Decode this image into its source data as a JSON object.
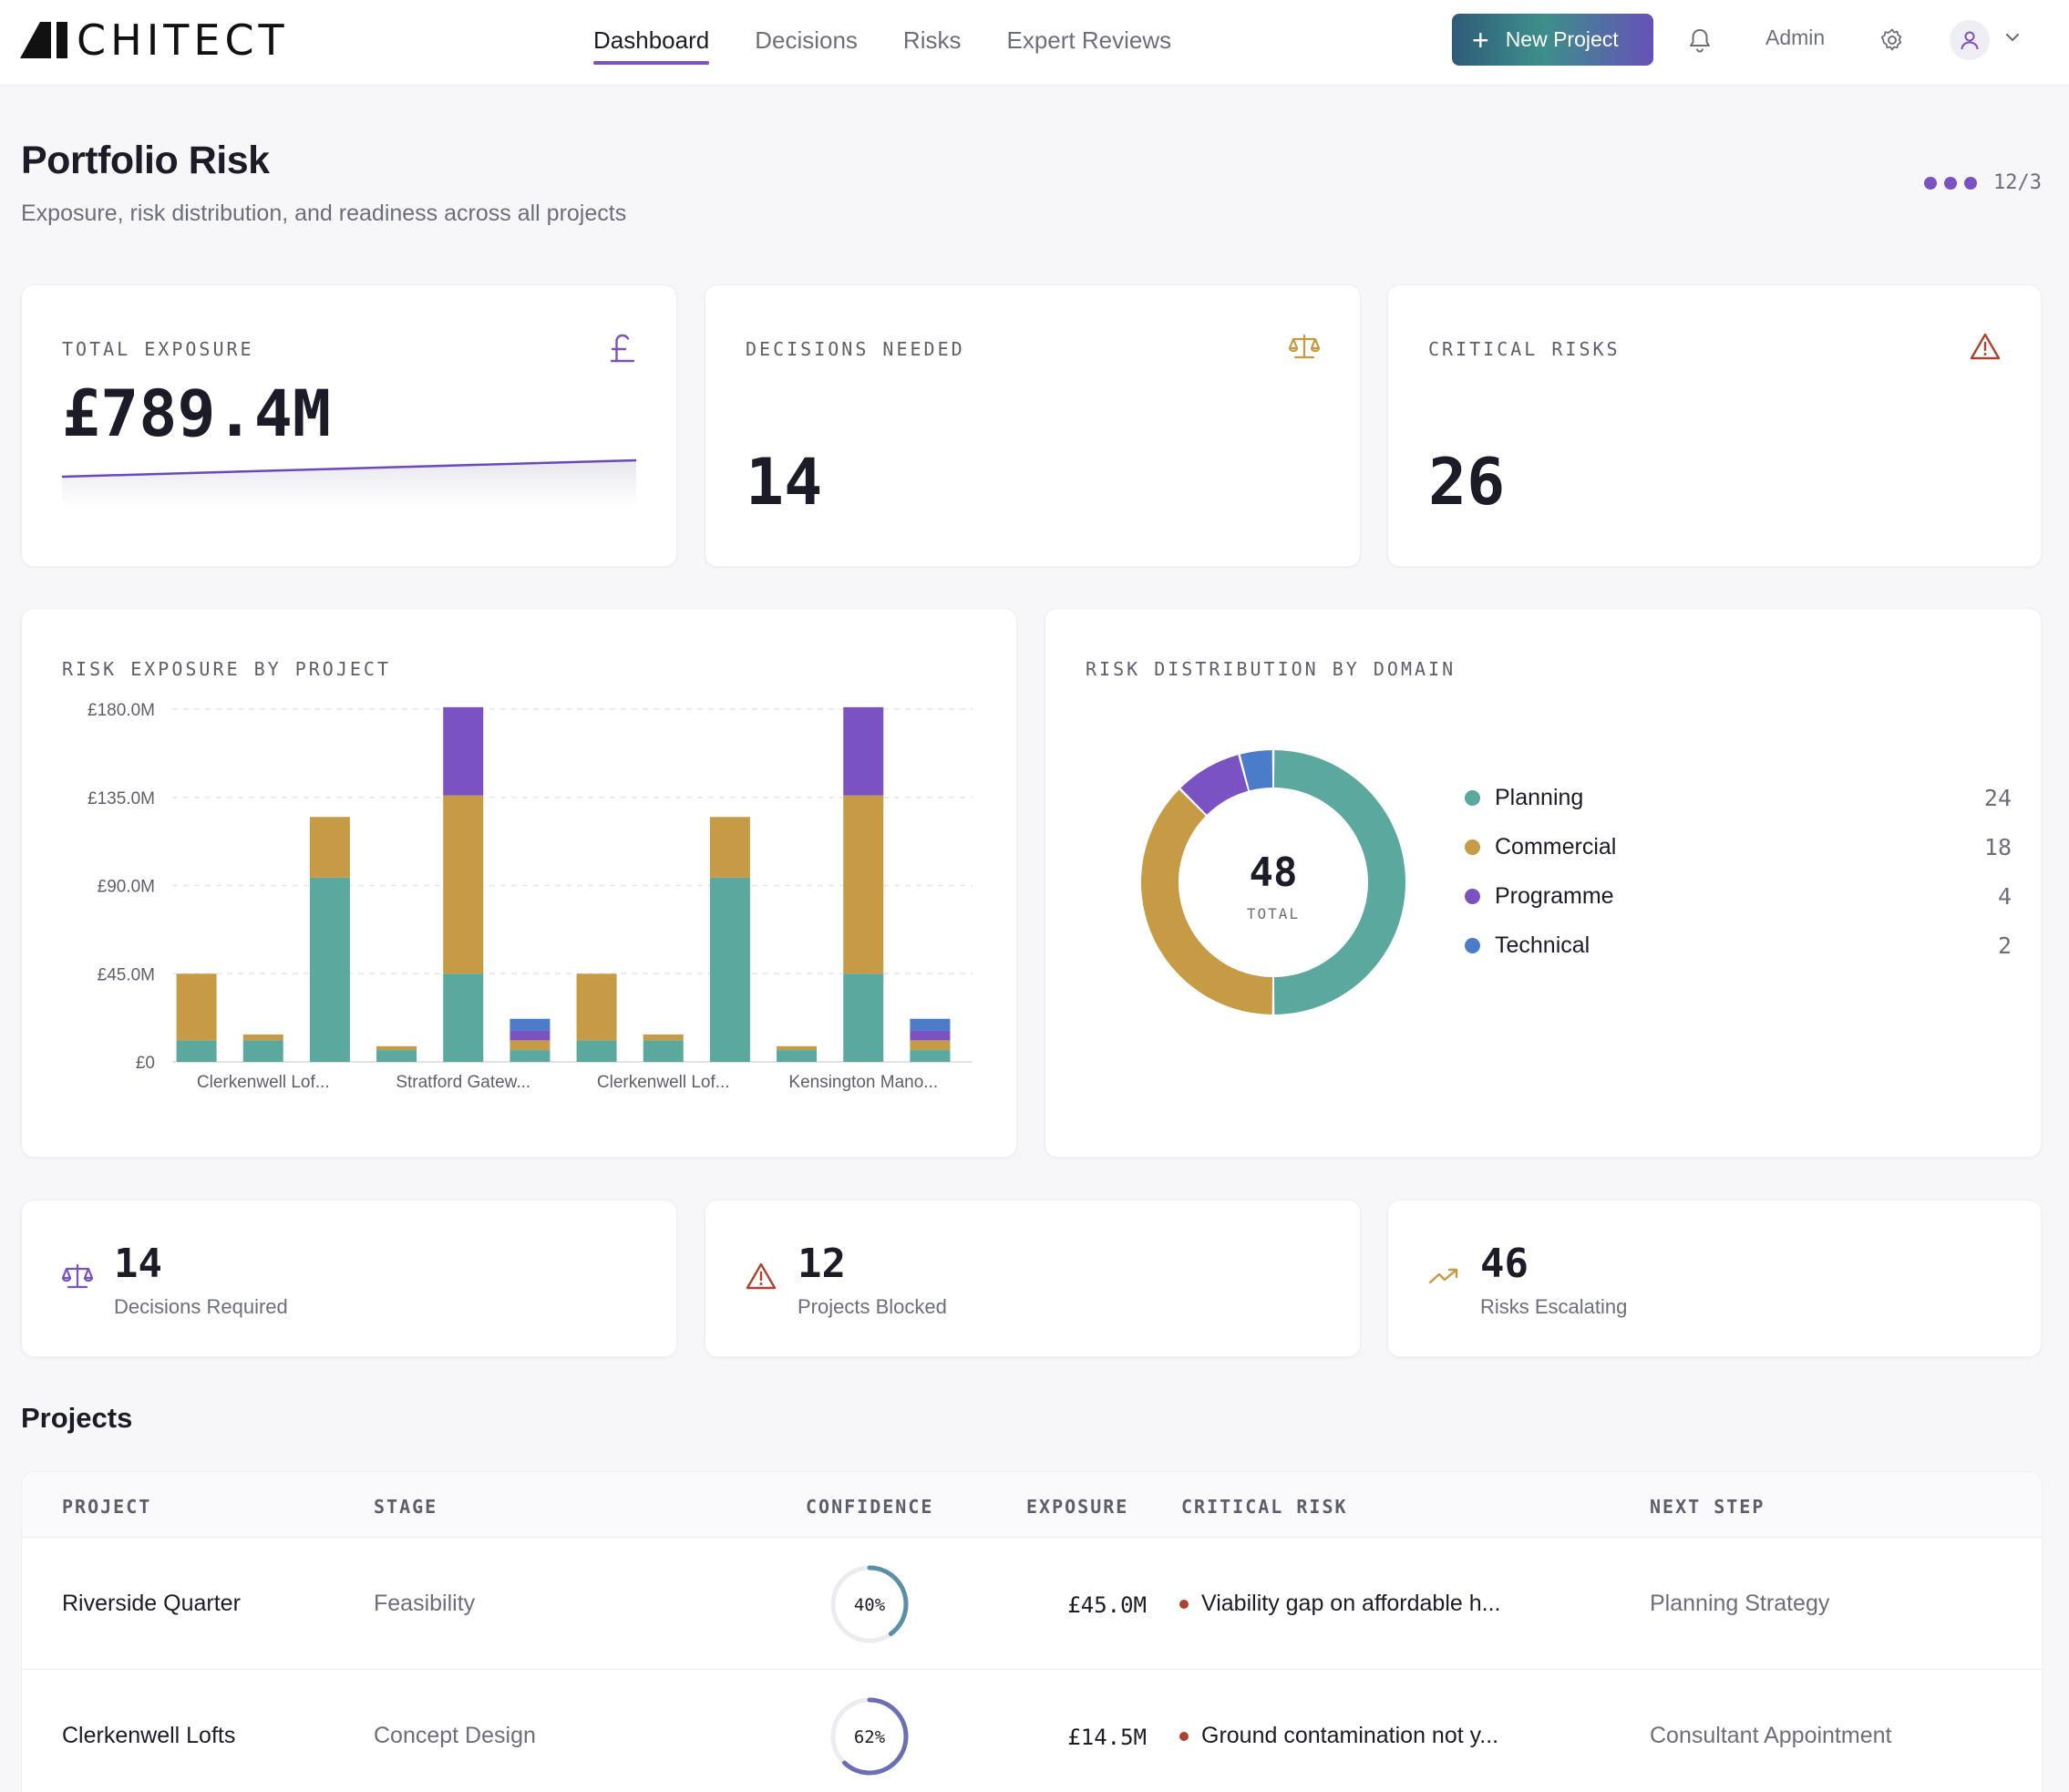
{
  "header": {
    "logo_text": "CHITECT",
    "nav": [
      {
        "label": "Dashboard",
        "active": true
      },
      {
        "label": "Decisions",
        "active": false
      },
      {
        "label": "Risks",
        "active": false
      },
      {
        "label": "Expert Reviews",
        "active": false
      }
    ],
    "new_project_label": "New Project",
    "admin_label": "Admin",
    "icons": [
      "bell-icon",
      "gear-icon",
      "user-icon",
      "chevron-down-icon"
    ]
  },
  "page": {
    "title": "Portfolio Risk",
    "subtitle": "Exposure, risk distribution, and readiness across all projects",
    "pager": "12/3"
  },
  "kpis": [
    {
      "label": "TOTAL EXPOSURE",
      "value": "£789.4M",
      "icon": "pound-icon",
      "icon_color": "#7a52c2"
    },
    {
      "label": "DECISIONS NEEDED",
      "value": "14",
      "icon": "scale-icon",
      "icon_color": "#c79a3f"
    },
    {
      "label": "CRITICAL RISKS",
      "value": "26",
      "icon": "warning-icon",
      "icon_color": "#b0412c"
    }
  ],
  "colors": {
    "planning": "#5aa89e",
    "commercial": "#c79a45",
    "programme": "#7a52c2",
    "technical": "#4a7cc9",
    "accent": "#7a52c2"
  },
  "bar_chart_title": "RISK EXPOSURE BY PROJECT",
  "donut_title": "RISK DISTRIBUTION BY DOMAIN",
  "chart_data": [
    {
      "type": "bar",
      "stacked": true,
      "title": "RISK EXPOSURE BY PROJECT",
      "ylim": [
        0,
        180
      ],
      "y_ticks": [
        "£0",
        "£45.0M",
        "£90.0M",
        "£135.0M",
        "£180.0M"
      ],
      "y_tick_values": [
        0,
        45,
        90,
        135,
        180
      ],
      "x_tick_labels": [
        "Clerkenwell Lof...",
        "Stratford Gatew...",
        "Clerkenwell Lof...",
        "Kensington Mano..."
      ],
      "x_tick_indices": [
        1,
        4,
        7,
        10
      ],
      "grid": true,
      "series": [
        {
          "name": "Planning",
          "color": "#5aa89e",
          "values": [
            11,
            11,
            94,
            6,
            45,
            6,
            11,
            11,
            94,
            6,
            45,
            6
          ]
        },
        {
          "name": "Commercial",
          "color": "#c79a45",
          "values": [
            34,
            3,
            31,
            2,
            91,
            5,
            34,
            3,
            31,
            2,
            91,
            5
          ]
        },
        {
          "name": "Programme",
          "color": "#7a52c2",
          "values": [
            0,
            0,
            0,
            0,
            45,
            5,
            0,
            0,
            0,
            0,
            45,
            5
          ]
        },
        {
          "name": "Technical",
          "color": "#4a7cc9",
          "values": [
            0,
            0,
            0,
            0,
            0,
            6,
            0,
            0,
            0,
            0,
            0,
            6
          ]
        }
      ]
    },
    {
      "type": "pie",
      "title": "RISK DISTRIBUTION BY DOMAIN",
      "donut": true,
      "center_value": "48",
      "center_label": "TOTAL",
      "categories": [
        "Planning",
        "Commercial",
        "Programme",
        "Technical"
      ],
      "values": [
        24,
        18,
        4,
        2
      ],
      "colors": [
        "#5aa89e",
        "#c79a45",
        "#7a52c2",
        "#4a7cc9"
      ]
    }
  ],
  "legend": [
    {
      "name": "Planning",
      "value": "24",
      "color": "#5aa89e"
    },
    {
      "name": "Commercial",
      "value": "18",
      "color": "#c79a45"
    },
    {
      "name": "Programme",
      "value": "4",
      "color": "#7a52c2"
    },
    {
      "name": "Technical",
      "value": "2",
      "color": "#4a7cc9"
    }
  ],
  "stats": [
    {
      "value": "14",
      "label": "Decisions Required",
      "icon": "scale-icon",
      "color": "#7a52c2"
    },
    {
      "value": "12",
      "label": "Projects Blocked",
      "icon": "warning-icon",
      "color": "#b0412c"
    },
    {
      "value": "46",
      "label": "Risks Escalating",
      "icon": "trending-up-icon",
      "color": "#c79a3f"
    }
  ],
  "projects": {
    "title": "Projects",
    "columns": [
      "PROJECT",
      "STAGE",
      "CONFIDENCE",
      "EXPOSURE",
      "CRITICAL RISK",
      "NEXT STEP"
    ],
    "rows": [
      {
        "name": "Riverside Quarter",
        "stage": "Feasibility",
        "confidence": 40,
        "confidence_label": "40%",
        "exposure": "£45.0M",
        "risk": "Viability gap on affordable h...",
        "next": "Planning Strategy"
      },
      {
        "name": "Clerkenwell Lofts",
        "stage": "Concept Design",
        "confidence": 62,
        "confidence_label": "62%",
        "exposure": "£14.5M",
        "risk": "Ground contamination not y...",
        "next": "Consultant Appointment"
      }
    ]
  }
}
